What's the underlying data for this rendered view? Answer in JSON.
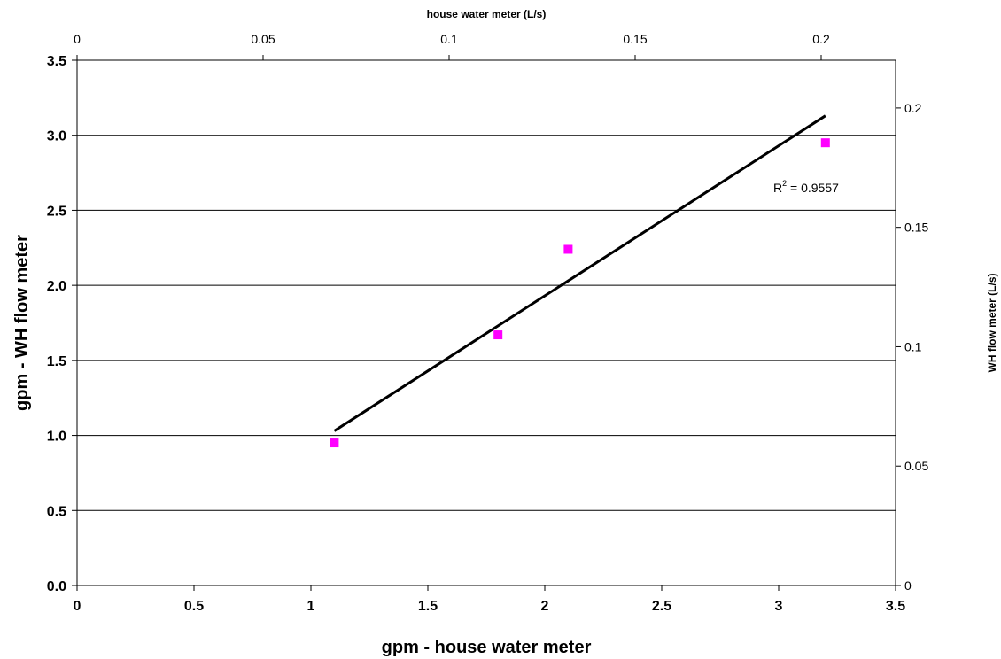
{
  "chart_data": {
    "type": "scatter",
    "title": "",
    "xlabel": "gpm - house water meter",
    "ylabel": "gpm - WH flow meter",
    "x2label": "house water meter (L/s)",
    "y2label": "WH flow meter (L/s)",
    "xlim": [
      0,
      3.5
    ],
    "ylim": [
      0,
      3.5
    ],
    "x2lim": [
      0,
      0.22
    ],
    "y2lim": [
      0,
      0.22
    ],
    "x_ticks": [
      "0",
      "0.5",
      "1",
      "1.5",
      "2",
      "2.5",
      "3",
      "3.5"
    ],
    "y_ticks": [
      "0.0",
      "0.5",
      "1.0",
      "1.5",
      "2.0",
      "2.5",
      "3.0",
      "3.5"
    ],
    "x2_ticks": [
      "0",
      "0.05",
      "0.1",
      "0.15",
      "0.2"
    ],
    "y2_ticks": [
      "0",
      "0.05",
      "0.1",
      "0.15",
      "0.2"
    ],
    "grid": "horizontal",
    "series": [
      {
        "color": "#ff00ff",
        "marker": "square",
        "x": [
          1.1,
          1.8,
          2.1,
          3.2
        ],
        "y": [
          0.95,
          1.67,
          2.24,
          2.95
        ]
      }
    ],
    "trendline": {
      "color": "#000000",
      "x": [
        1.1,
        3.2
      ],
      "y": [
        1.03,
        3.13
      ]
    },
    "annotation": {
      "prefix": "R",
      "superscript": "2",
      "suffix": " = 0.9557"
    }
  }
}
